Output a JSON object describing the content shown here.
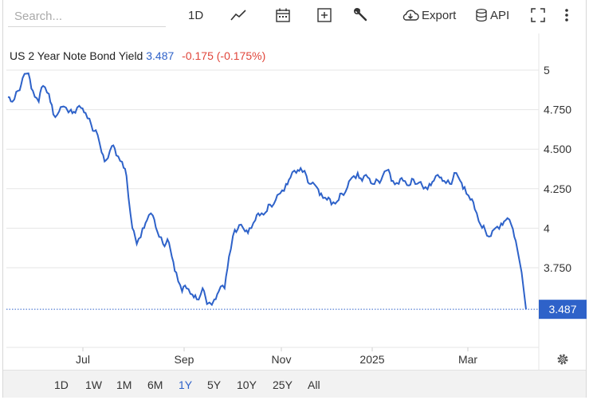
{
  "toolbar": {
    "search_placeholder": "Search...",
    "interval_label": "1D",
    "export_label": "Export",
    "api_label": "API"
  },
  "legend": {
    "name": "US 2 Year Note Bond Yield",
    "price": "3.487",
    "change": "-0.175 (-0.175%)"
  },
  "range_buttons": [
    "1D",
    "1W",
    "1M",
    "6M",
    "1Y",
    "5Y",
    "10Y",
    "25Y",
    "All"
  ],
  "active_range": "1Y",
  "colors": {
    "line": "#2e62c9",
    "change_negative": "#e0453a",
    "grid": "#e6e6e6",
    "last_price_badge": "#2e62c9"
  },
  "icons": [
    "line-chart-icon",
    "calendar-icon",
    "plus-box-icon",
    "wrench-icon",
    "cloud-download-icon",
    "database-icon",
    "fullscreen-icon",
    "more-vertical-icon",
    "gear-icon"
  ],
  "chart_data": {
    "type": "line",
    "title": "US 2 Year Note Bond Yield",
    "x_tick_labels": [
      "Jul",
      "Sep",
      "Nov",
      "2025",
      "Mar"
    ],
    "y_tick_labels": [
      "5",
      "4.750",
      "4.500",
      "4.250",
      "4",
      "3.750"
    ],
    "ylim": [
      3.45,
      5.05
    ],
    "last_value_label": "3.487",
    "last_value": 3.487,
    "grid": true,
    "series": [
      {
        "x": [
          "2024-04-15",
          "2024-04-18",
          "2024-04-22",
          "2024-04-25",
          "2024-04-29",
          "2024-05-02",
          "2024-05-06",
          "2024-05-09",
          "2024-05-13",
          "2024-05-16",
          "2024-05-20",
          "2024-05-23",
          "2024-05-28",
          "2024-05-31",
          "2024-06-04",
          "2024-06-07",
          "2024-06-11",
          "2024-06-14",
          "2024-06-18",
          "2024-06-21",
          "2024-06-25",
          "2024-06-28",
          "2024-07-02",
          "2024-07-05",
          "2024-07-09",
          "2024-07-12",
          "2024-07-16",
          "2024-07-19",
          "2024-07-23",
          "2024-07-26",
          "2024-07-30",
          "2024-08-02",
          "2024-08-05",
          "2024-08-08",
          "2024-08-12",
          "2024-08-15",
          "2024-08-19",
          "2024-08-22",
          "2024-08-26",
          "2024-08-29",
          "2024-09-03",
          "2024-09-06",
          "2024-09-10",
          "2024-09-13",
          "2024-09-17",
          "2024-09-20",
          "2024-09-24",
          "2024-09-27",
          "2024-10-01",
          "2024-10-04",
          "2024-10-08",
          "2024-10-11",
          "2024-10-15",
          "2024-10-18",
          "2024-10-22",
          "2024-10-25",
          "2024-10-29",
          "2024-11-01",
          "2024-11-05",
          "2024-11-08",
          "2024-11-12",
          "2024-11-15",
          "2024-11-19",
          "2024-11-22",
          "2024-11-26",
          "2024-11-29",
          "2024-12-03",
          "2024-12-06",
          "2024-12-10",
          "2024-12-13",
          "2024-12-17",
          "2024-12-20",
          "2024-12-24",
          "2024-12-27",
          "2024-12-31",
          "2025-01-03",
          "2025-01-07",
          "2025-01-10",
          "2025-01-14",
          "2025-01-17",
          "2025-01-21",
          "2025-01-24",
          "2025-01-28",
          "2025-01-31",
          "2025-02-04",
          "2025-02-07",
          "2025-02-11",
          "2025-02-14",
          "2025-02-18",
          "2025-02-21",
          "2025-02-25",
          "2025-02-28",
          "2025-03-04",
          "2025-03-07",
          "2025-03-11",
          "2025-03-14",
          "2025-03-18",
          "2025-03-21",
          "2025-03-25",
          "2025-03-28",
          "2025-04-01",
          "2025-04-04"
        ],
        "y": [
          4.83,
          4.8,
          4.87,
          4.95,
          4.98,
          4.87,
          4.8,
          4.9,
          4.85,
          4.72,
          4.74,
          4.77,
          4.75,
          4.73,
          4.76,
          4.73,
          4.65,
          4.62,
          4.48,
          4.43,
          4.52,
          4.46,
          4.42,
          4.33,
          4.0,
          3.9,
          4.0,
          4.05,
          4.08,
          3.98,
          3.9,
          3.93,
          3.82,
          3.72,
          3.6,
          3.62,
          3.58,
          3.55,
          3.62,
          3.52,
          3.55,
          3.6,
          3.62,
          3.82,
          3.99,
          4.02,
          3.98,
          4.0,
          4.05,
          4.08,
          4.1,
          4.15,
          4.18,
          4.22,
          4.28,
          4.32,
          4.35,
          4.38,
          4.33,
          4.28,
          4.26,
          4.22,
          4.18,
          4.15,
          4.17,
          4.22,
          4.26,
          4.32,
          4.35,
          4.3,
          4.32,
          4.28,
          4.3,
          4.33,
          4.37,
          4.3,
          4.28,
          4.3,
          4.27,
          4.31,
          4.29,
          4.25,
          4.28,
          4.3,
          4.32,
          4.3,
          4.28,
          4.35,
          4.3,
          4.26,
          4.18,
          4.12,
          4.02,
          3.99,
          3.95,
          4.0,
          4.03,
          4.05,
          4.02,
          3.92,
          3.72,
          3.487
        ]
      }
    ]
  }
}
